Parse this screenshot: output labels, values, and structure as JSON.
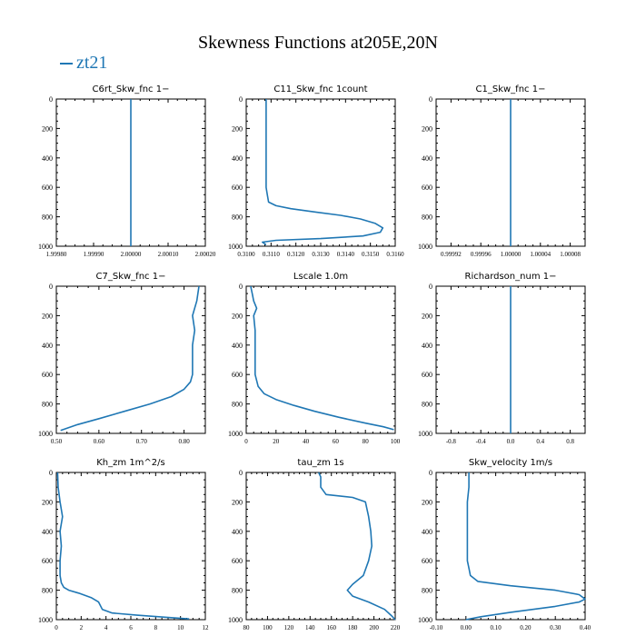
{
  "title": "Skewness Functions at205E,20N",
  "legend": "zt21",
  "colors": {
    "series": "#1f77b4",
    "axis": "#000000"
  },
  "chart_data": [
    {
      "type": "line",
      "title": "C6rt_Skw_fnc   1−",
      "xlim": [
        1.9998,
        2.0002
      ],
      "xticks": [
        1.9998,
        1.9999,
        2.0,
        2.0001,
        2.0002
      ],
      "xticklabels": [
        "1.99980",
        "1.99990",
        "2.00000",
        "2.00010",
        "2.00020"
      ],
      "ylim": [
        0,
        1000
      ],
      "yticks": [
        0,
        200,
        400,
        600,
        800,
        1000
      ],
      "yticklabels": [
        "0",
        "200",
        "400",
        "600",
        "800",
        "1000"
      ],
      "series": [
        {
          "name": "zt21",
          "x": [
            2.0,
            2.0
          ],
          "y": [
            0,
            1000
          ]
        }
      ]
    },
    {
      "type": "line",
      "title": "C11_Skw_fnc   1count",
      "xlim": [
        0.31,
        0.316
      ],
      "xticks": [
        0.31,
        0.311,
        0.312,
        0.313,
        0.314,
        0.315,
        0.316
      ],
      "xticklabels": [
        "0.3100",
        "0.3110",
        "0.3120",
        "0.3130",
        "0.3140",
        "0.3150",
        "0.3160"
      ],
      "ylim": [
        0,
        1000
      ],
      "yticks": [
        0,
        200,
        400,
        600,
        800,
        1000
      ],
      "yticklabels": [
        "0",
        "200",
        "400",
        "600",
        "800",
        "1000"
      ],
      "series": [
        {
          "name": "zt21",
          "x": [
            0.3108,
            0.3108,
            0.3108,
            0.3108,
            0.31085,
            0.3109,
            0.3112,
            0.3118,
            0.3128,
            0.3138,
            0.3146,
            0.3152,
            0.3155,
            0.3154,
            0.3147,
            0.313,
            0.3112,
            0.31065,
            0.3108
          ],
          "y": [
            0,
            200,
            400,
            600,
            650,
            700,
            725,
            745,
            768,
            790,
            815,
            845,
            875,
            905,
            930,
            948,
            960,
            972,
            990
          ]
        }
      ]
    },
    {
      "type": "line",
      "title": "C1_Skw_fnc   1−",
      "xlim": [
        0.9999,
        1.0001
      ],
      "xticks": [
        0.99992,
        0.99996,
        1.0,
        1.00004,
        1.00008
      ],
      "xticklabels": [
        "0.99992",
        "0.99996",
        "1.00000",
        "1.00004",
        "1.00008"
      ],
      "ylim": [
        0,
        1000
      ],
      "yticks": [
        0,
        200,
        400,
        600,
        800,
        1000
      ],
      "yticklabels": [
        "0",
        "200",
        "400",
        "600",
        "800",
        "1000"
      ],
      "series": [
        {
          "name": "zt21",
          "x": [
            1.0,
            1.0
          ],
          "y": [
            0,
            1000
          ]
        }
      ]
    },
    {
      "type": "line",
      "title": "C7_Skw_fnc   1−",
      "xlim": [
        0.5,
        0.85
      ],
      "xticks": [
        0.5,
        0.6,
        0.7,
        0.8
      ],
      "xticklabels": [
        "0.50",
        "0.60",
        "0.70",
        "0.80"
      ],
      "ylim": [
        0,
        1000
      ],
      "yticks": [
        0,
        200,
        400,
        600,
        800,
        1000
      ],
      "yticklabels": [
        "0",
        "200",
        "400",
        "600",
        "800",
        "1000"
      ],
      "series": [
        {
          "name": "zt21",
          "x": [
            0.835,
            0.83,
            0.82,
            0.825,
            0.82,
            0.82,
            0.82,
            0.815,
            0.8,
            0.77,
            0.72,
            0.66,
            0.6,
            0.55,
            0.51
          ],
          "y": [
            0,
            100,
            200,
            300,
            400,
            500,
            600,
            650,
            700,
            750,
            800,
            850,
            900,
            940,
            980
          ]
        }
      ]
    },
    {
      "type": "line",
      "title": "Lscale   1.0m",
      "xlim": [
        0,
        100
      ],
      "xticks": [
        0,
        20,
        40,
        60,
        80,
        100
      ],
      "xticklabels": [
        "0",
        "20",
        "40",
        "60",
        "80",
        "100"
      ],
      "ylim": [
        0,
        1000
      ],
      "yticks": [
        0,
        200,
        400,
        600,
        800,
        1000
      ],
      "yticklabels": [
        "0",
        "200",
        "400",
        "600",
        "800",
        "1000"
      ],
      "series": [
        {
          "name": "zt21",
          "x": [
            3,
            4,
            5,
            7,
            5,
            6,
            6,
            6,
            6,
            8,
            12,
            20,
            32,
            46,
            62,
            80,
            92,
            99
          ],
          "y": [
            0,
            50,
            100,
            150,
            200,
            300,
            400,
            500,
            600,
            680,
            730,
            770,
            810,
            850,
            890,
            930,
            955,
            975
          ]
        }
      ]
    },
    {
      "type": "line",
      "title": "Richardson_num   1−",
      "xlim": [
        -1,
        1
      ],
      "xticks": [
        -0.8,
        -0.4,
        0.0,
        0.4,
        0.8
      ],
      "xticklabels": [
        "-0.8",
        "-0.4",
        "0.0",
        "0.4",
        "0.8"
      ],
      "ylim": [
        0,
        1000
      ],
      "yticks": [
        0,
        200,
        400,
        600,
        800,
        1000
      ],
      "yticklabels": [
        "0",
        "200",
        "400",
        "600",
        "800",
        "1000"
      ],
      "series": [
        {
          "name": "zt21",
          "x": [
            0.0,
            0.0
          ],
          "y": [
            0,
            1000
          ]
        }
      ]
    },
    {
      "type": "line",
      "title": "Kh_zm   1m^2/s",
      "xlim": [
        0,
        12
      ],
      "xticks": [
        0,
        2,
        4,
        6,
        8,
        10,
        12
      ],
      "xticklabels": [
        "0",
        "2",
        "4",
        "6",
        "8",
        "10",
        "12"
      ],
      "ylim": [
        0,
        1000
      ],
      "yticks": [
        0,
        200,
        400,
        600,
        800,
        1000
      ],
      "yticklabels": [
        "0",
        "200",
        "400",
        "600",
        "800",
        "1000"
      ],
      "series": [
        {
          "name": "zt21",
          "x": [
            0.1,
            0.15,
            0.3,
            0.5,
            0.3,
            0.4,
            0.3,
            0.3,
            0.4,
            0.6,
            1.0,
            1.8,
            2.8,
            3.4,
            3.7,
            4.5,
            6.5,
            9.0,
            10.7
          ],
          "y": [
            0,
            100,
            200,
            300,
            400,
            500,
            600,
            700,
            750,
            780,
            800,
            820,
            850,
            880,
            930,
            955,
            970,
            985,
            995
          ]
        }
      ]
    },
    {
      "type": "line",
      "title": "tau_zm   1s",
      "xlim": [
        80,
        220
      ],
      "xticks": [
        80,
        100,
        120,
        140,
        160,
        180,
        200,
        220
      ],
      "xticklabels": [
        "80",
        "100",
        "120",
        "140",
        "160",
        "180",
        "200",
        "220"
      ],
      "ylim": [
        0,
        1000
      ],
      "yticks": [
        0,
        200,
        400,
        600,
        800,
        1000
      ],
      "yticklabels": [
        "0",
        "200",
        "400",
        "600",
        "800",
        "1000"
      ],
      "series": [
        {
          "name": "zt21",
          "x": [
            148,
            150,
            150,
            155,
            180,
            192,
            195,
            197,
            198,
            195,
            190,
            180,
            175,
            180,
            195,
            210,
            216,
            220
          ],
          "y": [
            0,
            30,
            100,
            150,
            170,
            200,
            300,
            400,
            500,
            600,
            700,
            760,
            800,
            840,
            880,
            930,
            970,
            1000
          ]
        }
      ]
    },
    {
      "type": "line",
      "title": "Skw_velocity   1m/s",
      "xlim": [
        -0.1,
        0.4
      ],
      "xticks": [
        -0.1,
        0.0,
        0.1,
        0.2,
        0.3,
        0.4
      ],
      "xticklabels": [
        "-0.10",
        "0.00",
        "0.10",
        "0.20",
        "0.30",
        "0.40"
      ],
      "ylim": [
        0,
        1000
      ],
      "yticks": [
        0,
        200,
        400,
        600,
        800,
        1000
      ],
      "yticklabels": [
        "0",
        "200",
        "400",
        "600",
        "800",
        "1000"
      ],
      "series": [
        {
          "name": "zt21",
          "x": [
            0.01,
            0.01,
            0.005,
            0.005,
            0.005,
            0.01,
            0.015,
            0.04,
            0.15,
            0.3,
            0.38,
            0.4,
            0.38,
            0.3,
            0.15,
            0.05,
            0.0
          ],
          "y": [
            0,
            100,
            200,
            400,
            600,
            650,
            700,
            740,
            770,
            800,
            830,
            860,
            880,
            910,
            950,
            980,
            1000
          ]
        }
      ]
    }
  ]
}
